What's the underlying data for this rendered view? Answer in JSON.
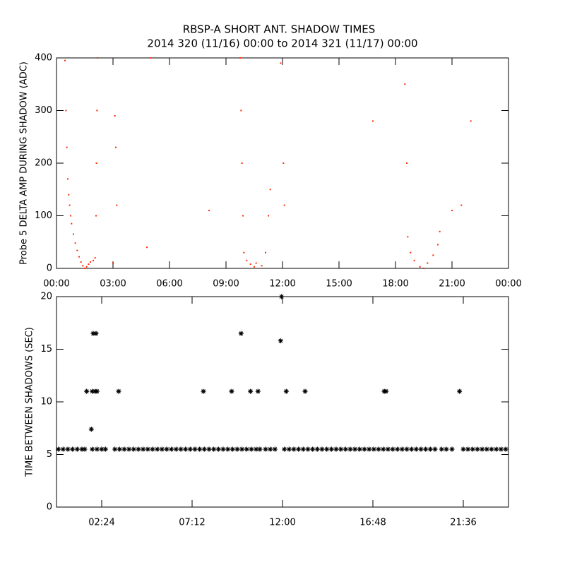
{
  "chart_data": [
    {
      "type": "scatter",
      "title": "RBSP-A SHORT ANT. SHADOW TIMES",
      "subtitle": "2014 320 (11/16) 00:00 to 2014 321 (11/17) 00:00",
      "y_label": "Probe 5 DELTA AMP DURING SHADOW (ADC)",
      "color": "#ff2a00",
      "xlim": [
        0,
        24
      ],
      "ylim": [
        0,
        400
      ],
      "xticks": [
        {
          "value": 0,
          "label": "00:00"
        },
        {
          "value": 3,
          "label": "03:00"
        },
        {
          "value": 6,
          "label": "06:00"
        },
        {
          "value": 9,
          "label": "09:00"
        },
        {
          "value": 12,
          "label": "12:00"
        },
        {
          "value": 15,
          "label": "15:00"
        },
        {
          "value": 18,
          "label": "18:00"
        },
        {
          "value": 21,
          "label": "21:00"
        },
        {
          "value": 24,
          "label": "00:00"
        }
      ],
      "yticks": [
        0,
        100,
        200,
        300,
        400
      ],
      "x": [
        0.45,
        0.5,
        0.55,
        0.6,
        0.65,
        0.7,
        0.75,
        0.8,
        0.9,
        1.0,
        1.1,
        1.2,
        1.3,
        1.4,
        1.5,
        1.6,
        1.7,
        1.8,
        1.95,
        2.05,
        2.1,
        2.12,
        2.15,
        2.18,
        3.0,
        3.15,
        3.1,
        3.2,
        4.8,
        5.0,
        8.1,
        9.75,
        9.8,
        9.85,
        9.9,
        9.95,
        10.1,
        10.3,
        10.5,
        10.6,
        10.9,
        11.1,
        11.25,
        11.35,
        11.9,
        12.05,
        12.1,
        16.8,
        18.5,
        18.6,
        18.65,
        18.8,
        19.0,
        19.3,
        19.5,
        19.7,
        20.0,
        20.25,
        20.35,
        21.5,
        22.0,
        21.0
      ],
      "values": [
        395,
        300,
        230,
        170,
        140,
        120,
        100,
        85,
        65,
        48,
        34,
        22,
        12,
        5,
        0,
        3,
        8,
        12,
        15,
        20,
        100,
        200,
        300,
        400,
        10,
        230,
        290,
        120,
        40,
        400,
        110,
        400,
        300,
        200,
        100,
        30,
        15,
        8,
        3,
        10,
        5,
        30,
        100,
        150,
        390,
        200,
        120,
        280,
        350,
        200,
        60,
        30,
        15,
        3,
        0,
        10,
        25,
        45,
        70,
        120,
        280,
        110
      ]
    },
    {
      "type": "scatter",
      "y_label": "TIME BETWEEN SHADOWS (SEC)",
      "color": "#000000",
      "xlim": [
        0,
        24
      ],
      "ylim": [
        0,
        20
      ],
      "xticks": [
        {
          "value": 2.4,
          "label": "02:24"
        },
        {
          "value": 7.2,
          "label": "07:12"
        },
        {
          "value": 12,
          "label": "12:00"
        },
        {
          "value": 16.8,
          "label": "16:48"
        },
        {
          "value": 21.6,
          "label": "21:36"
        }
      ],
      "yticks": [
        0,
        5,
        10,
        15,
        20
      ],
      "x": [
        0.1,
        0.35,
        0.6,
        0.85,
        1.1,
        1.35,
        1.5,
        1.9,
        2.15,
        2.4,
        2.6,
        3.1,
        3.35,
        3.6,
        3.85,
        4.1,
        4.35,
        4.6,
        4.85,
        5.1,
        5.35,
        5.6,
        5.85,
        6.1,
        6.35,
        6.6,
        6.85,
        7.1,
        7.35,
        7.6,
        7.85,
        8.1,
        8.35,
        8.6,
        8.85,
        9.1,
        9.35,
        9.6,
        9.85,
        10.1,
        10.35,
        10.6,
        10.8,
        11.1,
        11.35,
        11.6,
        12.1,
        12.35,
        12.6,
        12.85,
        13.1,
        13.35,
        13.6,
        13.85,
        14.1,
        14.35,
        14.6,
        14.85,
        15.1,
        15.35,
        15.6,
        15.85,
        16.1,
        16.35,
        16.6,
        16.85,
        17.1,
        17.35,
        17.6,
        17.85,
        18.1,
        18.35,
        18.6,
        18.85,
        19.1,
        19.35,
        19.6,
        19.85,
        20.1,
        20.45,
        20.7,
        21.0,
        21.6,
        21.85,
        22.1,
        22.35,
        22.6,
        22.85,
        23.1,
        23.35,
        23.6,
        23.85,
        1.6,
        1.85,
        1.9,
        1.95,
        2.05,
        2.1,
        2.15,
        3.3,
        7.8,
        9.3,
        9.8,
        10.3,
        10.7,
        11.9,
        11.95,
        12.2,
        13.2,
        17.4,
        17.5,
        21.4
      ],
      "values": [
        5.5,
        5.5,
        5.5,
        5.5,
        5.5,
        5.5,
        5.5,
        5.5,
        5.5,
        5.5,
        5.5,
        5.5,
        5.5,
        5.5,
        5.5,
        5.5,
        5.5,
        5.5,
        5.5,
        5.5,
        5.5,
        5.5,
        5.5,
        5.5,
        5.5,
        5.5,
        5.5,
        5.5,
        5.5,
        5.5,
        5.5,
        5.5,
        5.5,
        5.5,
        5.5,
        5.5,
        5.5,
        5.5,
        5.5,
        5.5,
        5.5,
        5.5,
        5.5,
        5.5,
        5.5,
        5.5,
        5.5,
        5.5,
        5.5,
        5.5,
        5.5,
        5.5,
        5.5,
        5.5,
        5.5,
        5.5,
        5.5,
        5.5,
        5.5,
        5.5,
        5.5,
        5.5,
        5.5,
        5.5,
        5.5,
        5.5,
        5.5,
        5.5,
        5.5,
        5.5,
        5.5,
        5.5,
        5.5,
        5.5,
        5.5,
        5.5,
        5.5,
        5.5,
        5.5,
        5.5,
        5.5,
        5.5,
        5.5,
        5.5,
        5.5,
        5.5,
        5.5,
        5.5,
        5.5,
        5.5,
        5.5,
        5.5,
        11,
        7.4,
        11,
        16.5,
        11,
        16.5,
        11,
        11,
        11,
        11,
        16.5,
        11,
        11,
        15.8,
        20,
        11,
        11,
        11,
        11,
        11
      ]
    }
  ]
}
